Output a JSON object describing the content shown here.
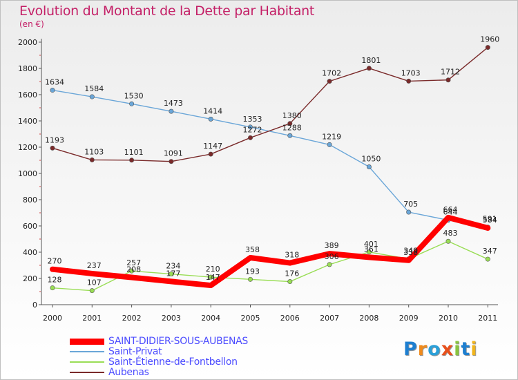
{
  "header": {
    "title": "Evolution du Montant de la Dette par Habitant",
    "subtitle": "(en €)"
  },
  "chart_data": {
    "type": "line",
    "title": "Evolution du Montant de la Dette par Habitant",
    "subtitle": "(en €)",
    "x": [
      2000,
      2001,
      2002,
      2003,
      2004,
      2005,
      2006,
      2007,
      2008,
      2009,
      2010,
      2011
    ],
    "y_ticks": [
      0,
      200,
      400,
      600,
      800,
      1000,
      1200,
      1400,
      1600,
      1800,
      2000
    ],
    "ylim": [
      0,
      2000
    ],
    "grid": false,
    "legend_position": "bottom-left",
    "series": [
      {
        "name": "SAINT-DIDIER-SOUS-AUBENAS",
        "color": "#ff0000",
        "values": [
          270,
          237,
          208,
          177,
          147,
          358,
          318,
          389,
          361,
          338,
          664,
          584
        ]
      },
      {
        "name": "Saint-Privat",
        "color": "#6aa6d8",
        "values": [
          1634,
          1584,
          1530,
          1473,
          1414,
          1353,
          1288,
          1219,
          1050,
          705,
          644,
          591
        ]
      },
      {
        "name": "Saint-Étienne-de-Fontbellon",
        "color": "#99dd55",
        "values": [
          128,
          107,
          257,
          234,
          210,
          193,
          176,
          306,
          401,
          349,
          483,
          347
        ]
      },
      {
        "name": "Aubenas",
        "color": "#7a2a2a",
        "values": [
          1193,
          1103,
          1101,
          1091,
          1147,
          1272,
          1380,
          1702,
          1801,
          1703,
          1712,
          1960
        ]
      }
    ]
  },
  "logo": {
    "letters": [
      "P",
      "r",
      "o",
      "x",
      "i",
      "t",
      "i"
    ],
    "colors": [
      "#1e7fd0",
      "#f08a1c",
      "#2a9fd8",
      "#e8501c",
      "#8ac43f",
      "#1e7fd0",
      "#f0b41c"
    ]
  }
}
